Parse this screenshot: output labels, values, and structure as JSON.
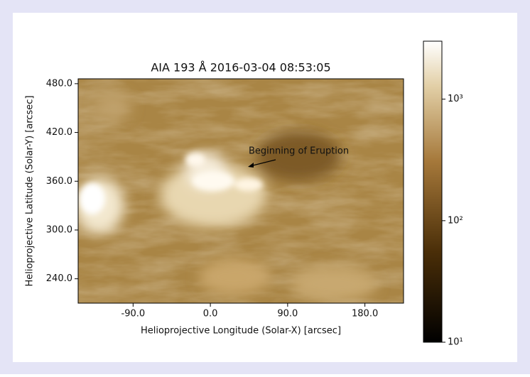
{
  "chart_data": {
    "type": "image",
    "title": "AIA 193 Å 2016-03-04 08:53:05",
    "x_label": "Helioprojective Longitude (Solar-X) [arcsec]",
    "y_label": "Helioprojective Latitude (Solar-Y) [arcsec]",
    "xlim": [
      -154,
      225
    ],
    "ylim": [
      210,
      486
    ],
    "xticks": [
      {
        "value": -90,
        "label": "-90.0"
      },
      {
        "value": 0,
        "label": "0.0"
      },
      {
        "value": 90,
        "label": "90.0"
      },
      {
        "value": 180,
        "label": "180.0"
      }
    ],
    "yticks": [
      {
        "value": 240,
        "label": "240.0"
      },
      {
        "value": 300,
        "label": "300.0"
      },
      {
        "value": 360,
        "label": "360.0"
      },
      {
        "value": 420,
        "label": "420.0"
      },
      {
        "value": 480,
        "label": "480.0"
      }
    ],
    "annotation": "Beginning of Eruption",
    "colorbar": {
      "log_scale": true,
      "clim": [
        10,
        3000
      ],
      "ticks": [
        {
          "value": 10,
          "label": "10¹"
        },
        {
          "value": 100,
          "label": "10²"
        },
        {
          "value": 1000,
          "label": "10³"
        }
      ]
    }
  }
}
